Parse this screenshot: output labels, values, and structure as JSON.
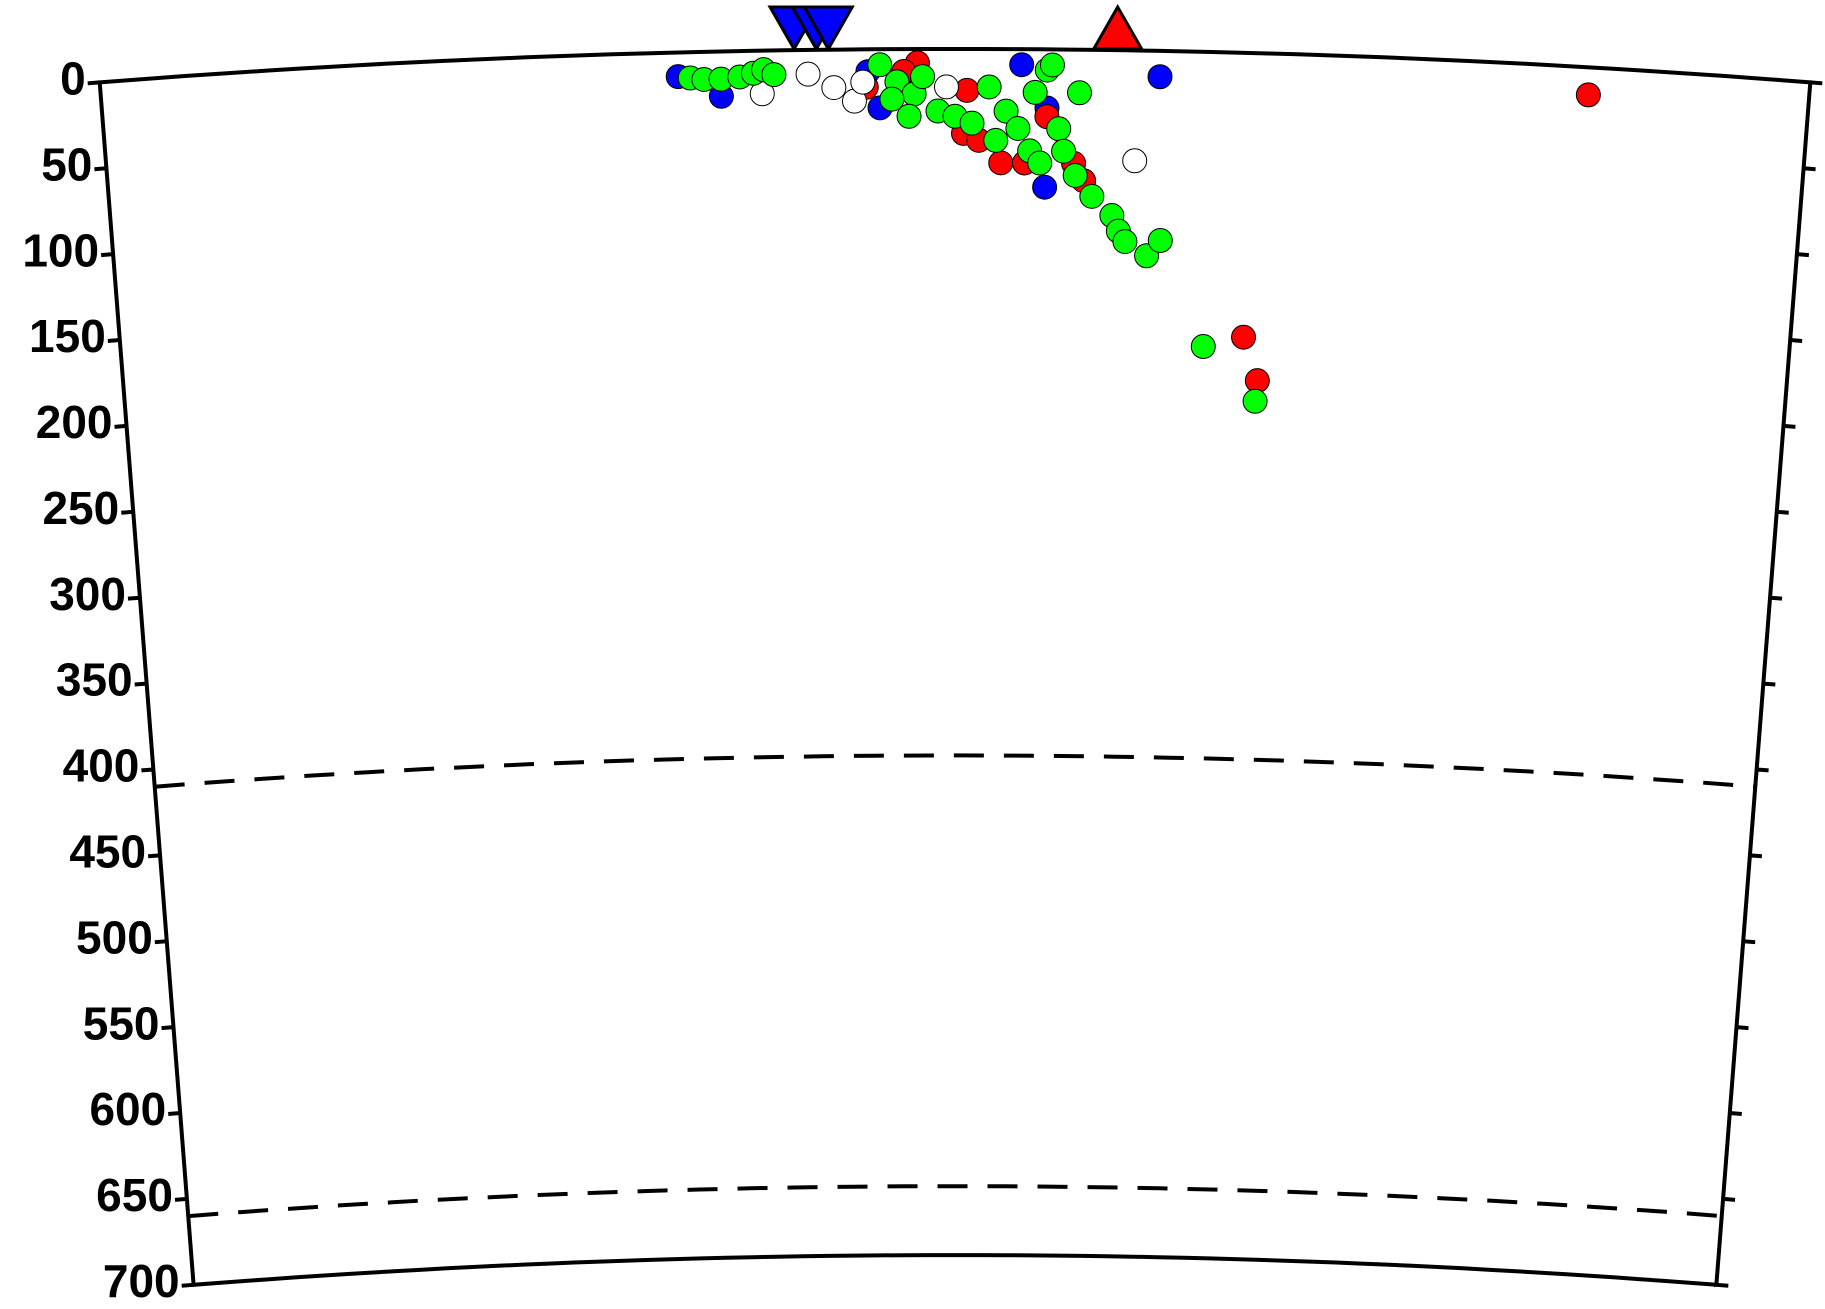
{
  "chart_data": {
    "type": "scatter",
    "xlim": [
      0,
      100
    ],
    "ylim": [
      0,
      700
    ],
    "yticks": [
      0,
      50,
      100,
      150,
      200,
      250,
      300,
      350,
      400,
      450,
      500,
      550,
      600,
      650,
      700
    ],
    "reference_depths": [
      410,
      660
    ],
    "series": [
      {
        "color": "#0000ff",
        "x": [
          33.8,
          36.3,
          53.9,
          55.4,
          55.3,
          62,
          45.6,
          44.9
        ],
        "values": [
          14,
          26,
          9,
          34,
          80,
          15,
          34,
          13
        ]
      },
      {
        "color": "#ff0000",
        "x": [
          87.1,
          67.3,
          68.2,
          52.7,
          54.1,
          47.8,
          44.8,
          50.5,
          51.4,
          57,
          57.6,
          55.4,
          47,
          50.7
        ],
        "values": [
          16,
          165,
          190,
          66,
          66,
          8,
          22,
          49,
          53,
          66,
          76,
          39,
          13,
          24
        ]
      },
      {
        "color": "#ffffff",
        "x": [
          41.4,
          38.7,
          42.9,
          44.1,
          60.6,
          44.6,
          49.5
        ],
        "values": [
          14,
          25,
          22,
          30,
          64,
          19,
          22
        ]
      },
      {
        "color": "#00ff00",
        "x": [
          34.5,
          35.3,
          36.3,
          37.4,
          38.2,
          38.8,
          39.4,
          45.6,
          46.6,
          47.6,
          48.1,
          49,
          50,
          51,
          52,
          53,
          53.7,
          54.7,
          55.4,
          55.7,
          56.1,
          56.4,
          57.1,
          58.1,
          59.3,
          59.7,
          60.1,
          61.4,
          62.2,
          57.3,
          64.9,
          68.1,
          52.4,
          54.4,
          55,
          47.3,
          46.3
        ],
        "values": [
          15,
          16,
          16,
          15,
          13,
          11,
          14,
          9,
          19,
          26,
          16,
          36,
          39,
          43,
          22,
          36,
          46,
          25,
          12,
          9,
          46,
          59,
          73,
          85,
          96,
          105,
          111,
          119,
          110,
          25,
          171,
          202,
          53,
          59,
          66,
          39,
          29
        ]
      }
    ],
    "stations": [
      {
        "color": "#0000ff",
        "marker": "triangle-down",
        "x": [
          40.6,
          41.9,
          42.6
        ]
      },
      {
        "color": "#ff0000",
        "marker": "triangle-up",
        "x": [
          59.5
        ]
      }
    ]
  }
}
